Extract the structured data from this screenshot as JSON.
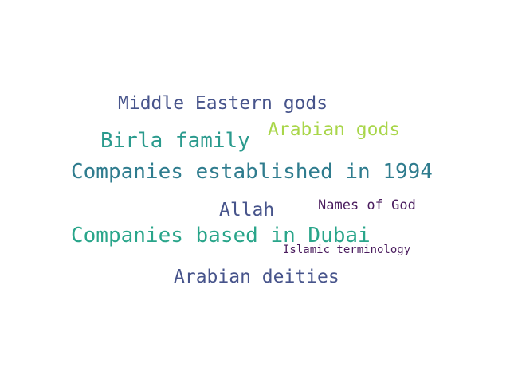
{
  "words": {
    "middle_eastern_gods": {
      "text": "Middle Eastern gods",
      "color": "#47548b"
    },
    "birla_family": {
      "text": "Birla family",
      "color": "#2a9a8d"
    },
    "arabian_gods": {
      "text": "Arabian gods",
      "color": "#a9d64a"
    },
    "companies_1994": {
      "text": "Companies established in 1994",
      "color": "#2f7c8e"
    },
    "allah": {
      "text": "Allah",
      "color": "#47548b"
    },
    "names_of_god": {
      "text": "Names of God",
      "color": "#4a1c5e"
    },
    "companies_dubai": {
      "text": "Companies based in Dubai",
      "color": "#29a58a"
    },
    "islamic_terminology": {
      "text": "Islamic terminology",
      "color": "#4a1c5e"
    },
    "arabian_deities": {
      "text": "Arabian deities",
      "color": "#47548b"
    }
  }
}
